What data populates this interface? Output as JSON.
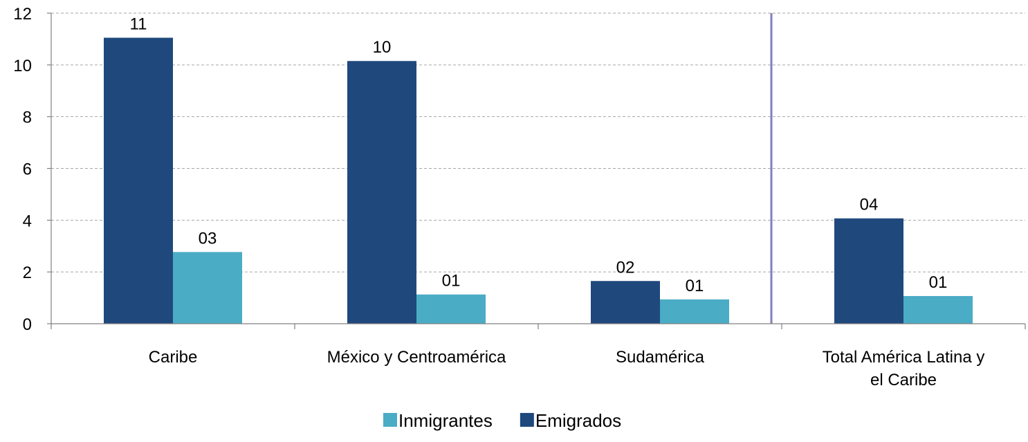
{
  "chart_data": {
    "type": "bar",
    "categories": [
      [
        "Caribe"
      ],
      [
        "México y Centroamérica"
      ],
      [
        "Sudamérica"
      ],
      [
        "Total América Latina y",
        "el Caribe"
      ]
    ],
    "series": [
      {
        "name": "Emigrados",
        "color": "#1F497D",
        "values": [
          11.05,
          10.15,
          1.65,
          4.07
        ],
        "labels": [
          "11",
          "10",
          "02",
          "04"
        ]
      },
      {
        "name": "Inmigrantes",
        "color": "#4BACC6",
        "values": [
          2.77,
          1.13,
          0.94,
          1.07
        ],
        "labels": [
          "03",
          "01",
          "01",
          "01"
        ]
      }
    ],
    "legend": {
      "placement": "bottom",
      "order": [
        "Inmigrantes",
        "Emigrados"
      ]
    },
    "ylim": [
      0,
      12
    ],
    "yticks": [
      0,
      2,
      4,
      6,
      8,
      10,
      12
    ],
    "grid": true,
    "separator_before_category": 3,
    "separator_color": "#7F7FBF",
    "title": "",
    "xlabel": "",
    "ylabel": ""
  }
}
